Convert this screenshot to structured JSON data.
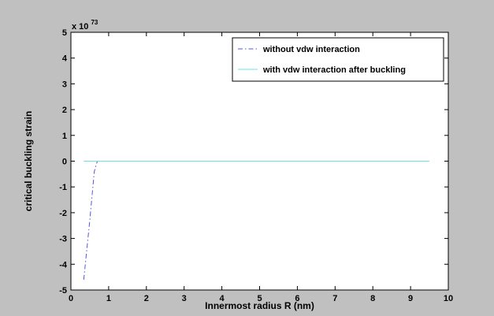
{
  "chart_data": {
    "type": "line",
    "title": "",
    "xlabel": "Innermost radius R (nm)",
    "ylabel": "critical buckling strain",
    "y_multiplier_label": "x 10",
    "y_multiplier_exponent": "73",
    "xlim": [
      0,
      10
    ],
    "ylim": [
      -5,
      5
    ],
    "xticks": [
      0,
      1,
      2,
      3,
      4,
      5,
      6,
      7,
      8,
      9,
      10
    ],
    "yticks": [
      -5,
      -4,
      -3,
      -2,
      -1,
      0,
      1,
      2,
      3,
      4,
      5
    ],
    "grid": false,
    "legend_position": "top-right",
    "series": [
      {
        "name": "without vdw interaction",
        "color": "#5555dd",
        "style": "dash-dot",
        "x": [
          0.34,
          0.5,
          0.62,
          0.7,
          0.8,
          0.9,
          1.0
        ],
        "y": [
          -4.6,
          -2.3,
          -0.4,
          0.0,
          0.0,
          0.0,
          0.0
        ]
      },
      {
        "name": "with vdw interaction after buckling",
        "color": "#66e6e6",
        "style": "solid",
        "x": [
          0.34,
          9.5
        ],
        "y": [
          0.0,
          0.0
        ]
      }
    ]
  }
}
